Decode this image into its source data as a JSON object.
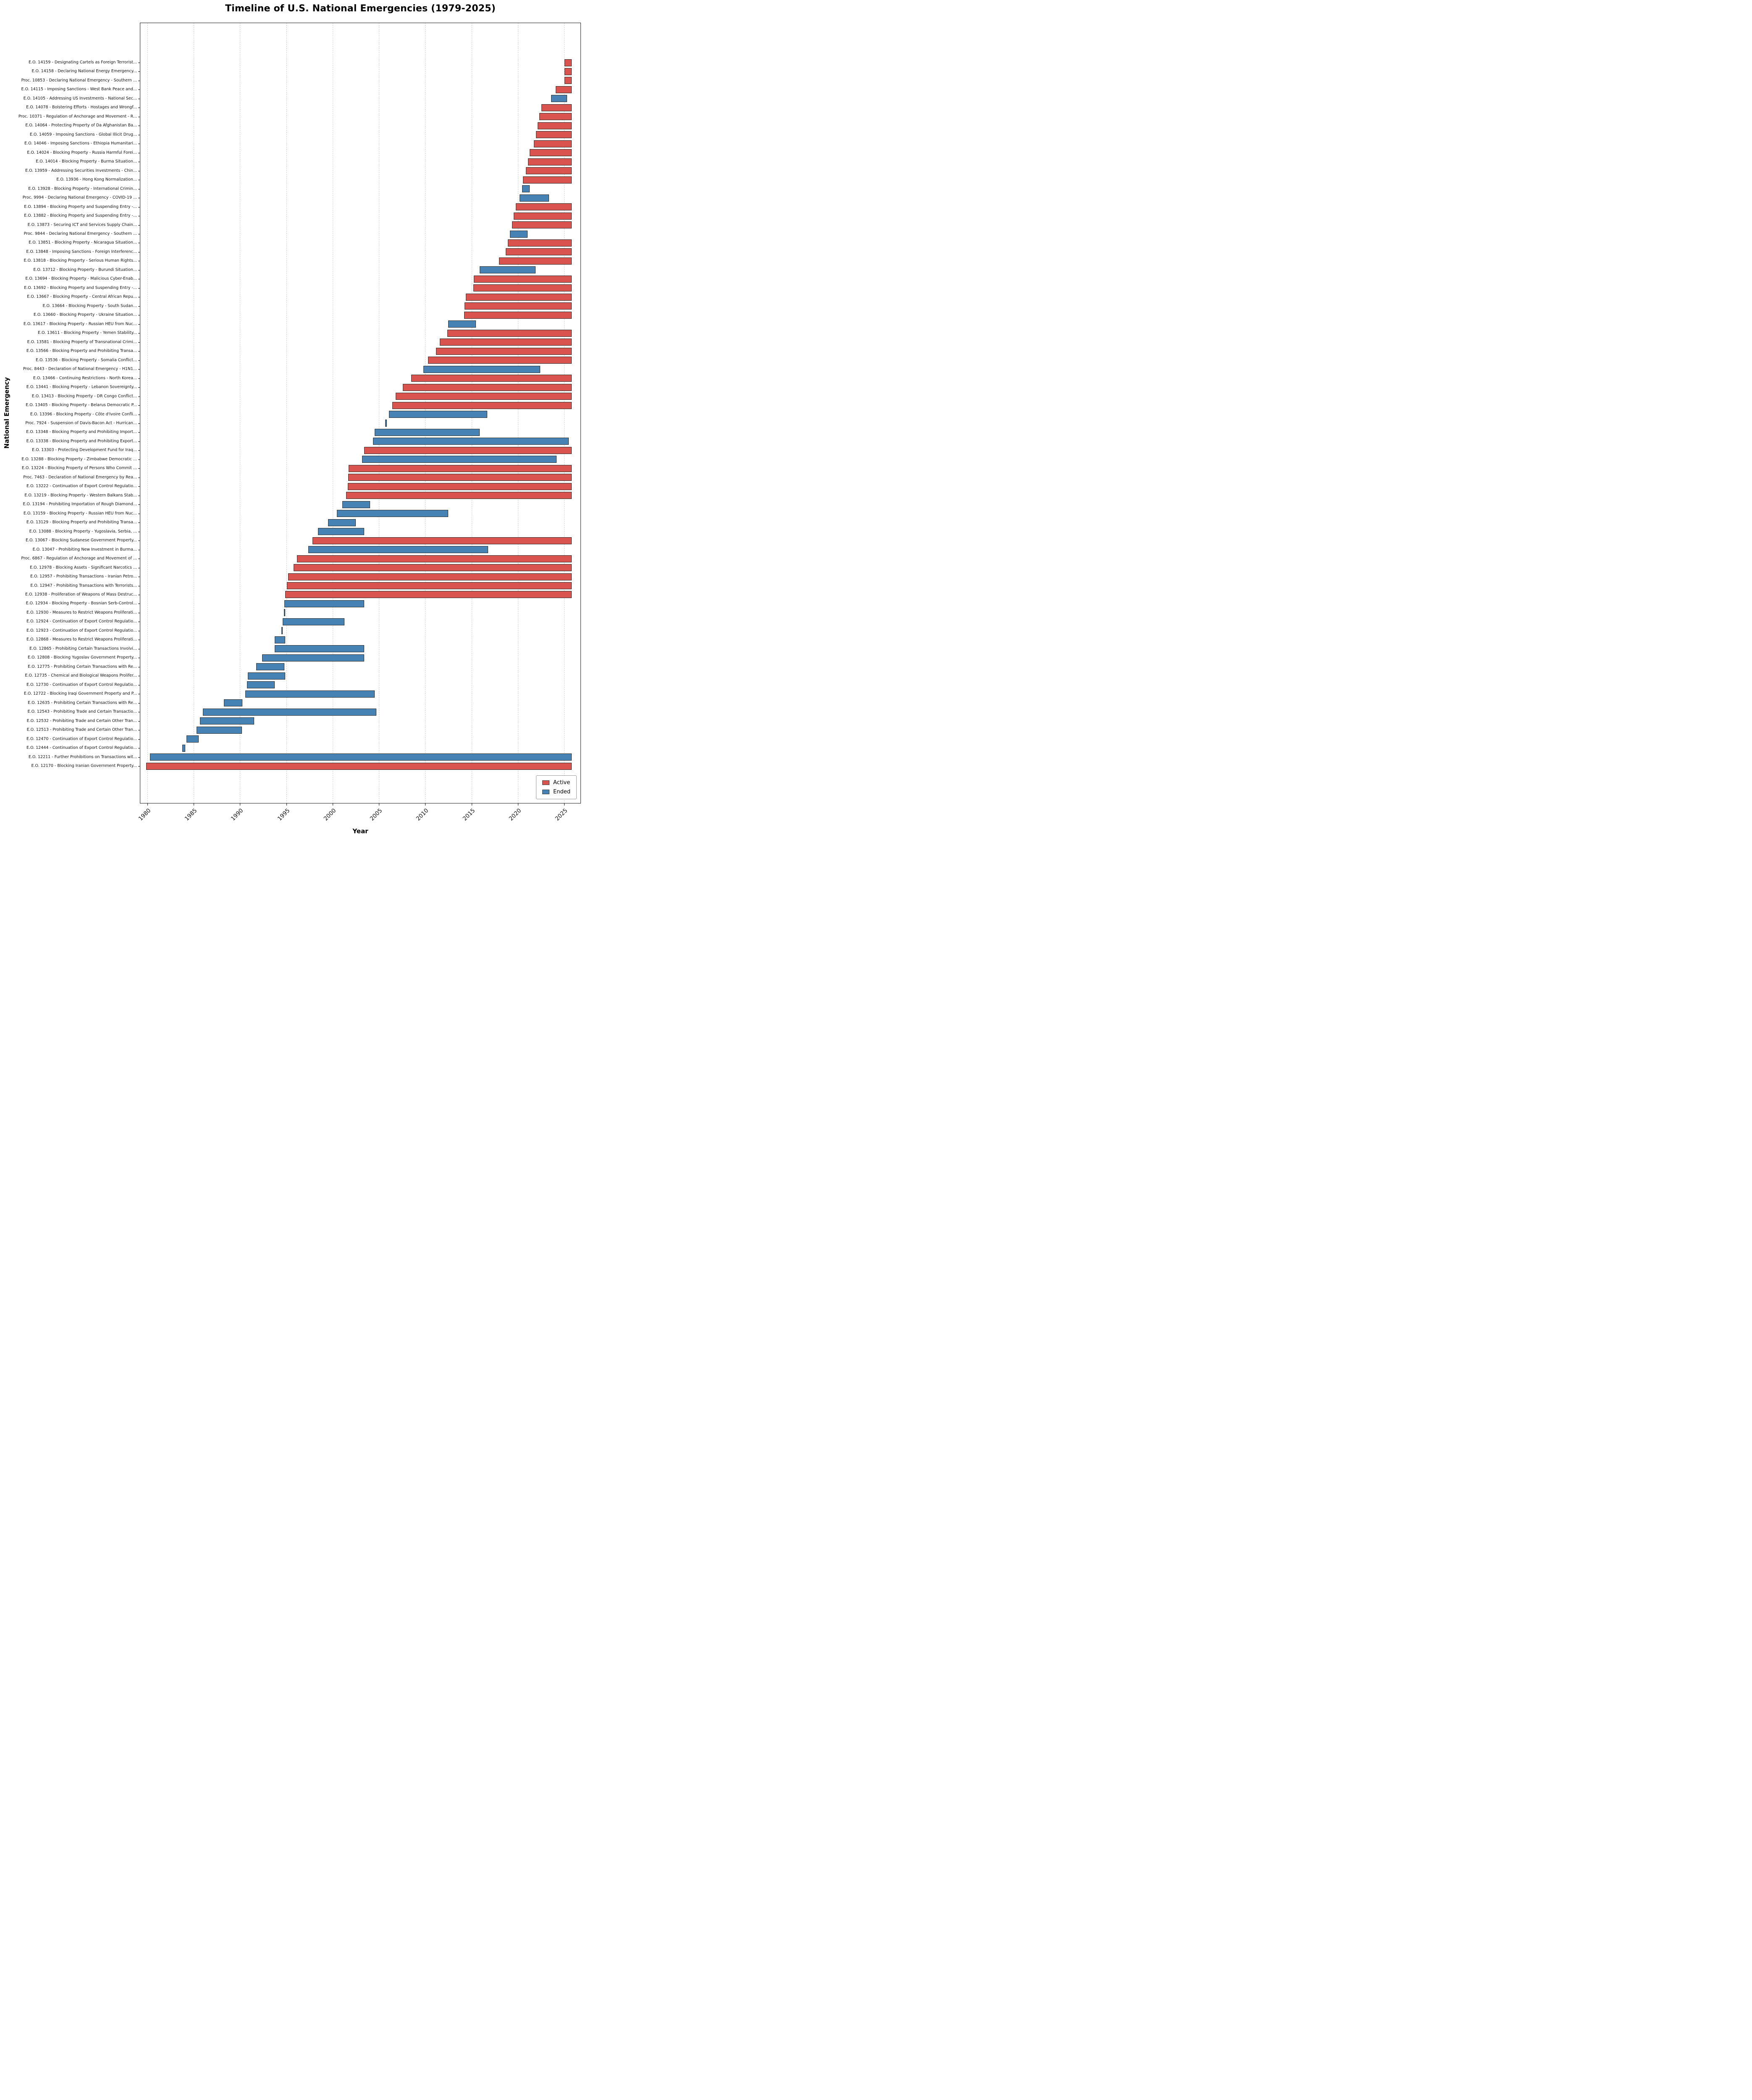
{
  "chart_data": {
    "type": "bar",
    "subtype": "horizontal-gantt-timeline",
    "title": "Timeline of U.S. National Emergencies (1979-2025)",
    "xlabel": "Year",
    "ylabel": "National Emergency",
    "xlim": [
      1979.2,
      2026.8
    ],
    "xticks": [
      1980,
      1985,
      1990,
      1995,
      2000,
      2005,
      2010,
      2015,
      2020,
      2025
    ],
    "grid": "vertical-dashed",
    "legend_position": "lower right",
    "colors": {
      "active": "#d9534f",
      "ended": "#4682b4",
      "bar_edge": "#2b2b2b"
    },
    "legend": [
      {
        "label": "Active",
        "color_key": "active"
      },
      {
        "label": "Ended",
        "color_key": "ended"
      }
    ],
    "row_order": "top-to-bottom",
    "rows": [
      {
        "label": "E.O. 14159 - Designating Cartels as Foreign Terrorist...",
        "start": 2025.05,
        "end": 2025.8,
        "status": "active"
      },
      {
        "label": "E.O. 14158 - Declaring National Energy Emergency...",
        "start": 2025.05,
        "end": 2025.8,
        "status": "active"
      },
      {
        "label": "Proc. 10853 - Declaring National Emergency - Southern ...",
        "start": 2025.05,
        "end": 2025.8,
        "status": "active"
      },
      {
        "label": "E.O. 14115 - Imposing Sanctions - West Bank Peace and...",
        "start": 2024.08,
        "end": 2025.8,
        "status": "active"
      },
      {
        "label": "E.O. 14105 - Addressing US Investments - National Sec...",
        "start": 2023.6,
        "end": 2025.3,
        "status": "ended"
      },
      {
        "label": "E.O. 14078 - Bolstering Efforts - Hostages and Wrongf...",
        "start": 2022.55,
        "end": 2025.8,
        "status": "active"
      },
      {
        "label": "Proc. 10371 - Regulation of Anchorage and Movement - R...",
        "start": 2022.3,
        "end": 2025.8,
        "status": "active"
      },
      {
        "label": "E.O. 14064 - Protecting Property of Da Afghanistan Ba...",
        "start": 2022.11,
        "end": 2025.8,
        "status": "active"
      },
      {
        "label": "E.O. 14059 - Imposing Sanctions - Global Illicit Drug...",
        "start": 2021.95,
        "end": 2025.8,
        "status": "active"
      },
      {
        "label": "E.O. 14046 - Imposing Sanctions - Ethiopia Humanitari...",
        "start": 2021.71,
        "end": 2025.8,
        "status": "active"
      },
      {
        "label": "E.O. 14024 - Blocking Property - Russia Harmful Forei...",
        "start": 2021.29,
        "end": 2025.8,
        "status": "active"
      },
      {
        "label": "E.O. 14014 - Blocking Property - Burma Situation...",
        "start": 2021.11,
        "end": 2025.8,
        "status": "active"
      },
      {
        "label": "E.O. 13959 - Addressing Securities Investments - Chin...",
        "start": 2020.86,
        "end": 2025.8,
        "status": "active"
      },
      {
        "label": "E.O. 13936 - Hong Kong Normalization...",
        "start": 2020.53,
        "end": 2025.8,
        "status": "active"
      },
      {
        "label": "E.O. 13928 - Blocking Property - International Crimin...",
        "start": 2020.44,
        "end": 2021.25,
        "status": "ended"
      },
      {
        "label": "Proc. 9994 - Declaring National Emergency - COVID-19 ...",
        "start": 2020.2,
        "end": 2023.35,
        "status": "ended"
      },
      {
        "label": "E.O. 13894 - Blocking Property and Suspending Entry -...",
        "start": 2019.78,
        "end": 2025.8,
        "status": "active"
      },
      {
        "label": "E.O. 13882 - Blocking Property and Suspending Entry -...",
        "start": 2019.56,
        "end": 2025.8,
        "status": "active"
      },
      {
        "label": "E.O. 13873 - Securing ICT and Services Supply Chain...",
        "start": 2019.37,
        "end": 2025.8,
        "status": "active"
      },
      {
        "label": "Proc. 9844 - Declaring National Emergency - Southern ...",
        "start": 2019.12,
        "end": 2021.05,
        "status": "ended"
      },
      {
        "label": "E.O. 13851 - Blocking Property - Nicaragua Situation...",
        "start": 2018.9,
        "end": 2025.8,
        "status": "active"
      },
      {
        "label": "E.O. 13848 - Imposing Sanctions - Foreign Interferenc...",
        "start": 2018.7,
        "end": 2025.8,
        "status": "active"
      },
      {
        "label": "E.O. 13818 - Blocking Property - Serious Human Rights...",
        "start": 2017.97,
        "end": 2025.8,
        "status": "active"
      },
      {
        "label": "E.O. 13712 - Blocking Property - Burundi Situation...",
        "start": 2015.89,
        "end": 2021.9,
        "status": "ended"
      },
      {
        "label": "E.O. 13694 - Blocking Property - Malicious Cyber-Enab...",
        "start": 2015.25,
        "end": 2025.8,
        "status": "active"
      },
      {
        "label": "E.O. 13692 - Blocking Property and Suspending Entry -...",
        "start": 2015.18,
        "end": 2025.8,
        "status": "active"
      },
      {
        "label": "E.O. 13667 - Blocking Property - Central African Repu...",
        "start": 2014.36,
        "end": 2025.8,
        "status": "active"
      },
      {
        "label": "E.O. 13664 - Blocking Property - South Sudan...",
        "start": 2014.25,
        "end": 2025.8,
        "status": "active"
      },
      {
        "label": "E.O. 13660 - Blocking Property - Ukraine Situation...",
        "start": 2014.18,
        "end": 2025.8,
        "status": "active"
      },
      {
        "label": "E.O. 13617 - Blocking Property - Russian HEU from Nuc...",
        "start": 2012.48,
        "end": 2015.48,
        "status": "ended"
      },
      {
        "label": "E.O. 13611 - Blocking Property - Yemen Stability...",
        "start": 2012.37,
        "end": 2025.8,
        "status": "active"
      },
      {
        "label": "E.O. 13581 - Blocking Property of Transnational Crimi...",
        "start": 2011.56,
        "end": 2025.8,
        "status": "active"
      },
      {
        "label": "E.O. 13566 - Blocking Property and Prohibiting Transa...",
        "start": 2011.15,
        "end": 2025.8,
        "status": "active"
      },
      {
        "label": "E.O. 13536 - Blocking Property - Somalia Conflict...",
        "start": 2010.28,
        "end": 2025.8,
        "status": "active"
      },
      {
        "label": "Proc. 8443 - Declaration of National Emergency - H1N1...",
        "start": 2009.81,
        "end": 2022.4,
        "status": "ended"
      },
      {
        "label": "E.O. 13466 - Continuing Restrictions - North Korea...",
        "start": 2008.48,
        "end": 2025.8,
        "status": "active"
      },
      {
        "label": "E.O. 13441 - Blocking Property - Lebanon Sovereignty...",
        "start": 2007.58,
        "end": 2025.8,
        "status": "active"
      },
      {
        "label": "E.O. 13413 - Blocking Property - DR Congo Conflict...",
        "start": 2006.82,
        "end": 2025.8,
        "status": "active"
      },
      {
        "label": "E.O. 13405 - Blocking Property - Belarus Democratic P...",
        "start": 2006.45,
        "end": 2025.8,
        "status": "active"
      },
      {
        "label": "E.O. 13396 - Blocking Property - Côte d'Ivoire Confli...",
        "start": 2006.1,
        "end": 2016.7,
        "status": "ended"
      },
      {
        "label": "Proc. 7924 - Suspension of Davis-Bacon Act - Hurrican...",
        "start": 2005.68,
        "end": 2005.87,
        "status": "ended"
      },
      {
        "label": "E.O. 13348 - Blocking Property and Prohibiting Import...",
        "start": 2004.55,
        "end": 2015.86,
        "status": "ended"
      },
      {
        "label": "E.O. 13338 - Blocking Property and Prohibiting Export...",
        "start": 2004.36,
        "end": 2025.5,
        "status": "ended"
      },
      {
        "label": "E.O. 13303 - Protecting Development Fund for Iraq...",
        "start": 2003.39,
        "end": 2025.8,
        "status": "active"
      },
      {
        "label": "E.O. 13288 - Blocking Property - Zimbabwe Democratic ...",
        "start": 2003.18,
        "end": 2024.17,
        "status": "ended"
      },
      {
        "label": "E.O. 13224 - Blocking Property of Persons Who Commit ...",
        "start": 2001.73,
        "end": 2025.8,
        "status": "active"
      },
      {
        "label": "Proc. 7463 - Declaration of National Emergency by Rea...",
        "start": 2001.7,
        "end": 2025.8,
        "status": "active"
      },
      {
        "label": "E.O. 13222 - Continuation of Export Control Regulatio...",
        "start": 2001.62,
        "end": 2025.8,
        "status": "active"
      },
      {
        "label": "E.O. 13219 - Blocking Property - Western Balkans Stab...",
        "start": 2001.48,
        "end": 2025.8,
        "status": "active"
      },
      {
        "label": "E.O. 13194 - Prohibiting Importation of Rough Diamond...",
        "start": 2001.05,
        "end": 2004.05,
        "status": "ended"
      },
      {
        "label": "E.O. 13159 - Blocking Property - Russian HEU from Nuc...",
        "start": 2000.47,
        "end": 2012.48,
        "status": "ended"
      },
      {
        "label": "E.O. 13129 - Blocking Property and Prohibiting Transa...",
        "start": 1999.5,
        "end": 2002.5,
        "status": "ended"
      },
      {
        "label": "E.O. 13088 - Blocking Property - Yugoslavia, Serbia, ...",
        "start": 1998.44,
        "end": 2003.4,
        "status": "ended"
      },
      {
        "label": "E.O. 13067 - Blocking Sudanese Government Property...",
        "start": 1997.84,
        "end": 2025.8,
        "status": "active"
      },
      {
        "label": "E.O. 13047 - Prohibiting New Investment in Burma...",
        "start": 1997.38,
        "end": 2016.76,
        "status": "ended"
      },
      {
        "label": "Proc. 6867 - Regulation of Anchorage and Movement of ...",
        "start": 1996.16,
        "end": 2025.8,
        "status": "active"
      },
      {
        "label": "E.O. 12978 - Blocking Assets - Significant Narcotics ...",
        "start": 1995.8,
        "end": 2025.8,
        "status": "active"
      },
      {
        "label": "E.O. 12957 - Prohibiting Transactions - Iranian Petro...",
        "start": 1995.2,
        "end": 2025.8,
        "status": "active"
      },
      {
        "label": "E.O. 12947 - Prohibiting Transactions with Terrorists...",
        "start": 1995.06,
        "end": 2025.8,
        "status": "active"
      },
      {
        "label": "E.O. 12938 - Proliferation of Weapons of Mass Destruc...",
        "start": 1994.87,
        "end": 2025.8,
        "status": "active"
      },
      {
        "label": "E.O. 12934 - Blocking Property - Bosnian Serb-Control...",
        "start": 1994.81,
        "end": 2003.4,
        "status": "ended"
      },
      {
        "label": "E.O. 12930 - Measures to Restrict Weapons Proliferati...",
        "start": 1994.74,
        "end": 1994.87,
        "status": "ended"
      },
      {
        "label": "E.O. 12924 - Continuation of Export Control Regulatio...",
        "start": 1994.63,
        "end": 2001.3,
        "status": "ended"
      },
      {
        "label": "E.O. 12923 - Continuation of Export Control Regulatio...",
        "start": 1994.49,
        "end": 1994.63,
        "status": "ended"
      },
      {
        "label": "E.O. 12868 - Measures to Restrict Weapons Proliferati...",
        "start": 1993.75,
        "end": 1994.87,
        "status": "ended"
      },
      {
        "label": "E.O. 12865 - Prohibiting Certain Transactions Involvi...",
        "start": 1993.73,
        "end": 2003.4,
        "status": "ended"
      },
      {
        "label": "E.O. 12808 - Blocking Yugoslav Government Property...",
        "start": 1992.41,
        "end": 2003.4,
        "status": "ended"
      },
      {
        "label": "E.O. 12775 - Prohibiting Certain Transactions with Re...",
        "start": 1991.76,
        "end": 1994.79,
        "status": "ended"
      },
      {
        "label": "E.O. 12735 - Chemical and Biological Weapons Prolifer...",
        "start": 1990.87,
        "end": 1994.87,
        "status": "ended"
      },
      {
        "label": "E.O. 12730 - Continuation of Export Control Regulatio...",
        "start": 1990.75,
        "end": 1993.75,
        "status": "ended"
      },
      {
        "label": "E.O. 12722 - Blocking Iraqi Government Property and P...",
        "start": 1990.58,
        "end": 2004.55,
        "status": "ended"
      },
      {
        "label": "E.O. 12635 - Prohibiting Certain Transactions with Re...",
        "start": 1988.27,
        "end": 1990.27,
        "status": "ended"
      },
      {
        "label": "E.O. 12543 - Prohibiting Trade and Certain Transactio...",
        "start": 1986.02,
        "end": 2004.72,
        "status": "ended"
      },
      {
        "label": "E.O. 12532 - Prohibiting Trade and Certain Other Tran...",
        "start": 1985.69,
        "end": 1991.52,
        "status": "ended"
      },
      {
        "label": "E.O. 12513 - Prohibiting Trade and Certain Other Tran...",
        "start": 1985.33,
        "end": 1990.21,
        "status": "ended"
      },
      {
        "label": "E.O. 12470 - Continuation of Export Control Regulatio...",
        "start": 1984.25,
        "end": 1985.54,
        "status": "ended"
      },
      {
        "label": "E.O. 12444 - Continuation of Export Control Regulatio...",
        "start": 1983.78,
        "end": 1984.1,
        "status": "ended"
      },
      {
        "label": "E.O. 12211 - Further Prohibitions on Transactions wit...",
        "start": 1980.29,
        "end": 2025.8,
        "status": "ended"
      },
      {
        "label": "E.O. 12170 - Blocking Iranian Government Property...",
        "start": 1979.87,
        "end": 2025.8,
        "status": "active"
      }
    ]
  }
}
